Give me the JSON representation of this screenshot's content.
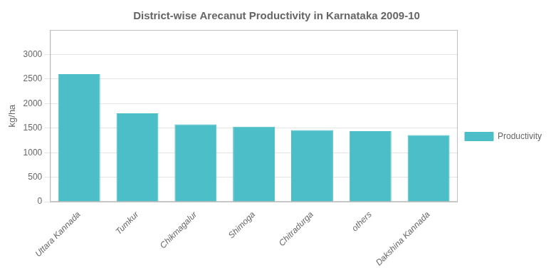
{
  "chart_data": {
    "type": "bar",
    "title": "District-wise Arecanut Productivity in Karnataka 2009-10",
    "categories": [
      "Uttara Kannada",
      "Tumkur",
      "Chikmagalur",
      "Shimoga",
      "Chitradurga",
      "others",
      "Dakshina Kannada"
    ],
    "series": [
      {
        "name": "Productivity",
        "color": "#4BBEC8",
        "values": [
          2600,
          1800,
          1575,
          1530,
          1460,
          1440,
          1360
        ]
      }
    ],
    "ylabel": "kg/ha",
    "ylim": [
      0,
      3500
    ],
    "yticks": [
      0,
      500,
      1000,
      1500,
      2000,
      2500,
      3000
    ],
    "grid": true,
    "legend": "right"
  }
}
